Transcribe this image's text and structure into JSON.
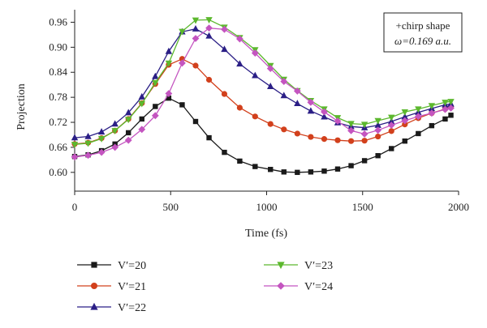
{
  "chart_data": {
    "type": "line",
    "xlabel": "Time (fs)",
    "ylabel": "Projection",
    "xlim": [
      0,
      2000
    ],
    "ylim": [
      0.555,
      0.99
    ],
    "xticks": [
      0,
      500,
      1000,
      1500,
      2000
    ],
    "yticks": [
      0.6,
      0.66,
      0.72,
      0.78,
      0.84,
      0.9,
      0.96
    ],
    "annotation": {
      "line1": "+chirp shape",
      "line2": "ω=0.169 a.u."
    },
    "legend_position": "bottom",
    "grid": false,
    "x": [
      0,
      70,
      140,
      210,
      280,
      350,
      420,
      490,
      560,
      630,
      700,
      780,
      860,
      940,
      1020,
      1090,
      1160,
      1230,
      1300,
      1370,
      1440,
      1510,
      1580,
      1650,
      1720,
      1790,
      1860,
      1930,
      1960
    ],
    "series": [
      {
        "name": "V′=20",
        "marker": "square",
        "color": "#1a1a1a",
        "values": [
          0.638,
          0.642,
          0.652,
          0.668,
          0.695,
          0.728,
          0.758,
          0.778,
          0.762,
          0.722,
          0.683,
          0.648,
          0.627,
          0.614,
          0.607,
          0.601,
          0.6,
          0.601,
          0.603,
          0.608,
          0.616,
          0.628,
          0.64,
          0.657,
          0.675,
          0.693,
          0.712,
          0.728,
          0.737
        ]
      },
      {
        "name": "V′=21",
        "marker": "circle",
        "color": "#d2401c",
        "values": [
          0.668,
          0.671,
          0.682,
          0.7,
          0.728,
          0.766,
          0.812,
          0.858,
          0.872,
          0.856,
          0.822,
          0.788,
          0.755,
          0.734,
          0.716,
          0.703,
          0.693,
          0.685,
          0.68,
          0.677,
          0.675,
          0.676,
          0.686,
          0.699,
          0.715,
          0.73,
          0.742,
          0.752,
          0.757
        ]
      },
      {
        "name": "V′=22",
        "marker": "triangle-up",
        "color": "#2b1f86",
        "values": [
          0.683,
          0.686,
          0.697,
          0.716,
          0.743,
          0.781,
          0.83,
          0.89,
          0.937,
          0.944,
          0.927,
          0.895,
          0.86,
          0.832,
          0.806,
          0.784,
          0.765,
          0.747,
          0.733,
          0.719,
          0.71,
          0.707,
          0.713,
          0.722,
          0.733,
          0.744,
          0.753,
          0.762,
          0.764
        ]
      },
      {
        "name": "V′=23",
        "marker": "triangle-down",
        "color": "#5cb82e",
        "values": [
          0.667,
          0.67,
          0.681,
          0.7,
          0.727,
          0.765,
          0.815,
          0.862,
          0.938,
          0.965,
          0.966,
          0.948,
          0.923,
          0.894,
          0.856,
          0.823,
          0.796,
          0.772,
          0.752,
          0.731,
          0.717,
          0.715,
          0.724,
          0.732,
          0.745,
          0.752,
          0.76,
          0.768,
          0.77
        ]
      },
      {
        "name": "V′=24",
        "marker": "diamond",
        "color": "#c455c0",
        "values": [
          0.637,
          0.641,
          0.648,
          0.66,
          0.677,
          0.703,
          0.736,
          0.789,
          0.862,
          0.921,
          0.946,
          0.943,
          0.92,
          0.886,
          0.849,
          0.818,
          0.795,
          0.768,
          0.745,
          0.723,
          0.7,
          0.692,
          0.701,
          0.713,
          0.724,
          0.734,
          0.742,
          0.751,
          0.754
        ]
      }
    ]
  }
}
